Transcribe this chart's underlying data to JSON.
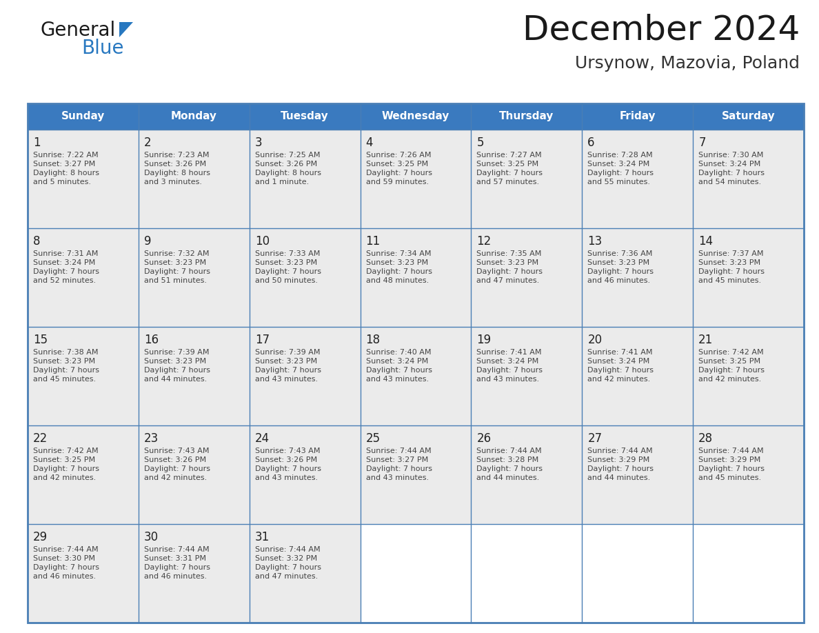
{
  "title": "December 2024",
  "subtitle": "Ursynow, Mazovia, Poland",
  "header_color": "#3a7abf",
  "header_text_color": "#ffffff",
  "cell_bg_color": "#ebebeb",
  "grid_color": "#4a7fb5",
  "text_color": "#333333",
  "day_num_color": "#222222",
  "info_text_color": "#444444",
  "day_headers": [
    "Sunday",
    "Monday",
    "Tuesday",
    "Wednesday",
    "Thursday",
    "Friday",
    "Saturday"
  ],
  "calendar_data": [
    [
      {
        "day": 1,
        "sunrise": "7:22 AM",
        "sunset": "3:27 PM",
        "daylight_line1": "Daylight: 8 hours",
        "daylight_line2": "and 5 minutes."
      },
      {
        "day": 2,
        "sunrise": "7:23 AM",
        "sunset": "3:26 PM",
        "daylight_line1": "Daylight: 8 hours",
        "daylight_line2": "and 3 minutes."
      },
      {
        "day": 3,
        "sunrise": "7:25 AM",
        "sunset": "3:26 PM",
        "daylight_line1": "Daylight: 8 hours",
        "daylight_line2": "and 1 minute."
      },
      {
        "day": 4,
        "sunrise": "7:26 AM",
        "sunset": "3:25 PM",
        "daylight_line1": "Daylight: 7 hours",
        "daylight_line2": "and 59 minutes."
      },
      {
        "day": 5,
        "sunrise": "7:27 AM",
        "sunset": "3:25 PM",
        "daylight_line1": "Daylight: 7 hours",
        "daylight_line2": "and 57 minutes."
      },
      {
        "day": 6,
        "sunrise": "7:28 AM",
        "sunset": "3:24 PM",
        "daylight_line1": "Daylight: 7 hours",
        "daylight_line2": "and 55 minutes."
      },
      {
        "day": 7,
        "sunrise": "7:30 AM",
        "sunset": "3:24 PM",
        "daylight_line1": "Daylight: 7 hours",
        "daylight_line2": "and 54 minutes."
      }
    ],
    [
      {
        "day": 8,
        "sunrise": "7:31 AM",
        "sunset": "3:24 PM",
        "daylight_line1": "Daylight: 7 hours",
        "daylight_line2": "and 52 minutes."
      },
      {
        "day": 9,
        "sunrise": "7:32 AM",
        "sunset": "3:23 PM",
        "daylight_line1": "Daylight: 7 hours",
        "daylight_line2": "and 51 minutes."
      },
      {
        "day": 10,
        "sunrise": "7:33 AM",
        "sunset": "3:23 PM",
        "daylight_line1": "Daylight: 7 hours",
        "daylight_line2": "and 50 minutes."
      },
      {
        "day": 11,
        "sunrise": "7:34 AM",
        "sunset": "3:23 PM",
        "daylight_line1": "Daylight: 7 hours",
        "daylight_line2": "and 48 minutes."
      },
      {
        "day": 12,
        "sunrise": "7:35 AM",
        "sunset": "3:23 PM",
        "daylight_line1": "Daylight: 7 hours",
        "daylight_line2": "and 47 minutes."
      },
      {
        "day": 13,
        "sunrise": "7:36 AM",
        "sunset": "3:23 PM",
        "daylight_line1": "Daylight: 7 hours",
        "daylight_line2": "and 46 minutes."
      },
      {
        "day": 14,
        "sunrise": "7:37 AM",
        "sunset": "3:23 PM",
        "daylight_line1": "Daylight: 7 hours",
        "daylight_line2": "and 45 minutes."
      }
    ],
    [
      {
        "day": 15,
        "sunrise": "7:38 AM",
        "sunset": "3:23 PM",
        "daylight_line1": "Daylight: 7 hours",
        "daylight_line2": "and 45 minutes."
      },
      {
        "day": 16,
        "sunrise": "7:39 AM",
        "sunset": "3:23 PM",
        "daylight_line1": "Daylight: 7 hours",
        "daylight_line2": "and 44 minutes."
      },
      {
        "day": 17,
        "sunrise": "7:39 AM",
        "sunset": "3:23 PM",
        "daylight_line1": "Daylight: 7 hours",
        "daylight_line2": "and 43 minutes."
      },
      {
        "day": 18,
        "sunrise": "7:40 AM",
        "sunset": "3:24 PM",
        "daylight_line1": "Daylight: 7 hours",
        "daylight_line2": "and 43 minutes."
      },
      {
        "day": 19,
        "sunrise": "7:41 AM",
        "sunset": "3:24 PM",
        "daylight_line1": "Daylight: 7 hours",
        "daylight_line2": "and 43 minutes."
      },
      {
        "day": 20,
        "sunrise": "7:41 AM",
        "sunset": "3:24 PM",
        "daylight_line1": "Daylight: 7 hours",
        "daylight_line2": "and 42 minutes."
      },
      {
        "day": 21,
        "sunrise": "7:42 AM",
        "sunset": "3:25 PM",
        "daylight_line1": "Daylight: 7 hours",
        "daylight_line2": "and 42 minutes."
      }
    ],
    [
      {
        "day": 22,
        "sunrise": "7:42 AM",
        "sunset": "3:25 PM",
        "daylight_line1": "Daylight: 7 hours",
        "daylight_line2": "and 42 minutes."
      },
      {
        "day": 23,
        "sunrise": "7:43 AM",
        "sunset": "3:26 PM",
        "daylight_line1": "Daylight: 7 hours",
        "daylight_line2": "and 42 minutes."
      },
      {
        "day": 24,
        "sunrise": "7:43 AM",
        "sunset": "3:26 PM",
        "daylight_line1": "Daylight: 7 hours",
        "daylight_line2": "and 43 minutes."
      },
      {
        "day": 25,
        "sunrise": "7:44 AM",
        "sunset": "3:27 PM",
        "daylight_line1": "Daylight: 7 hours",
        "daylight_line2": "and 43 minutes."
      },
      {
        "day": 26,
        "sunrise": "7:44 AM",
        "sunset": "3:28 PM",
        "daylight_line1": "Daylight: 7 hours",
        "daylight_line2": "and 44 minutes."
      },
      {
        "day": 27,
        "sunrise": "7:44 AM",
        "sunset": "3:29 PM",
        "daylight_line1": "Daylight: 7 hours",
        "daylight_line2": "and 44 minutes."
      },
      {
        "day": 28,
        "sunrise": "7:44 AM",
        "sunset": "3:29 PM",
        "daylight_line1": "Daylight: 7 hours",
        "daylight_line2": "and 45 minutes."
      }
    ],
    [
      {
        "day": 29,
        "sunrise": "7:44 AM",
        "sunset": "3:30 PM",
        "daylight_line1": "Daylight: 7 hours",
        "daylight_line2": "and 46 minutes."
      },
      {
        "day": 30,
        "sunrise": "7:44 AM",
        "sunset": "3:31 PM",
        "daylight_line1": "Daylight: 7 hours",
        "daylight_line2": "and 46 minutes."
      },
      {
        "day": 31,
        "sunrise": "7:44 AM",
        "sunset": "3:32 PM",
        "daylight_line1": "Daylight: 7 hours",
        "daylight_line2": "and 47 minutes."
      },
      null,
      null,
      null,
      null
    ]
  ],
  "logo_general_color": "#1a1a1a",
  "logo_blue_color": "#2878c0",
  "logo_triangle_color": "#2878c0",
  "title_color": "#1a1a1a",
  "subtitle_color": "#333333",
  "title_fontsize": 36,
  "subtitle_fontsize": 18,
  "header_fontsize": 11,
  "day_num_fontsize": 12,
  "cell_text_fontsize": 8
}
